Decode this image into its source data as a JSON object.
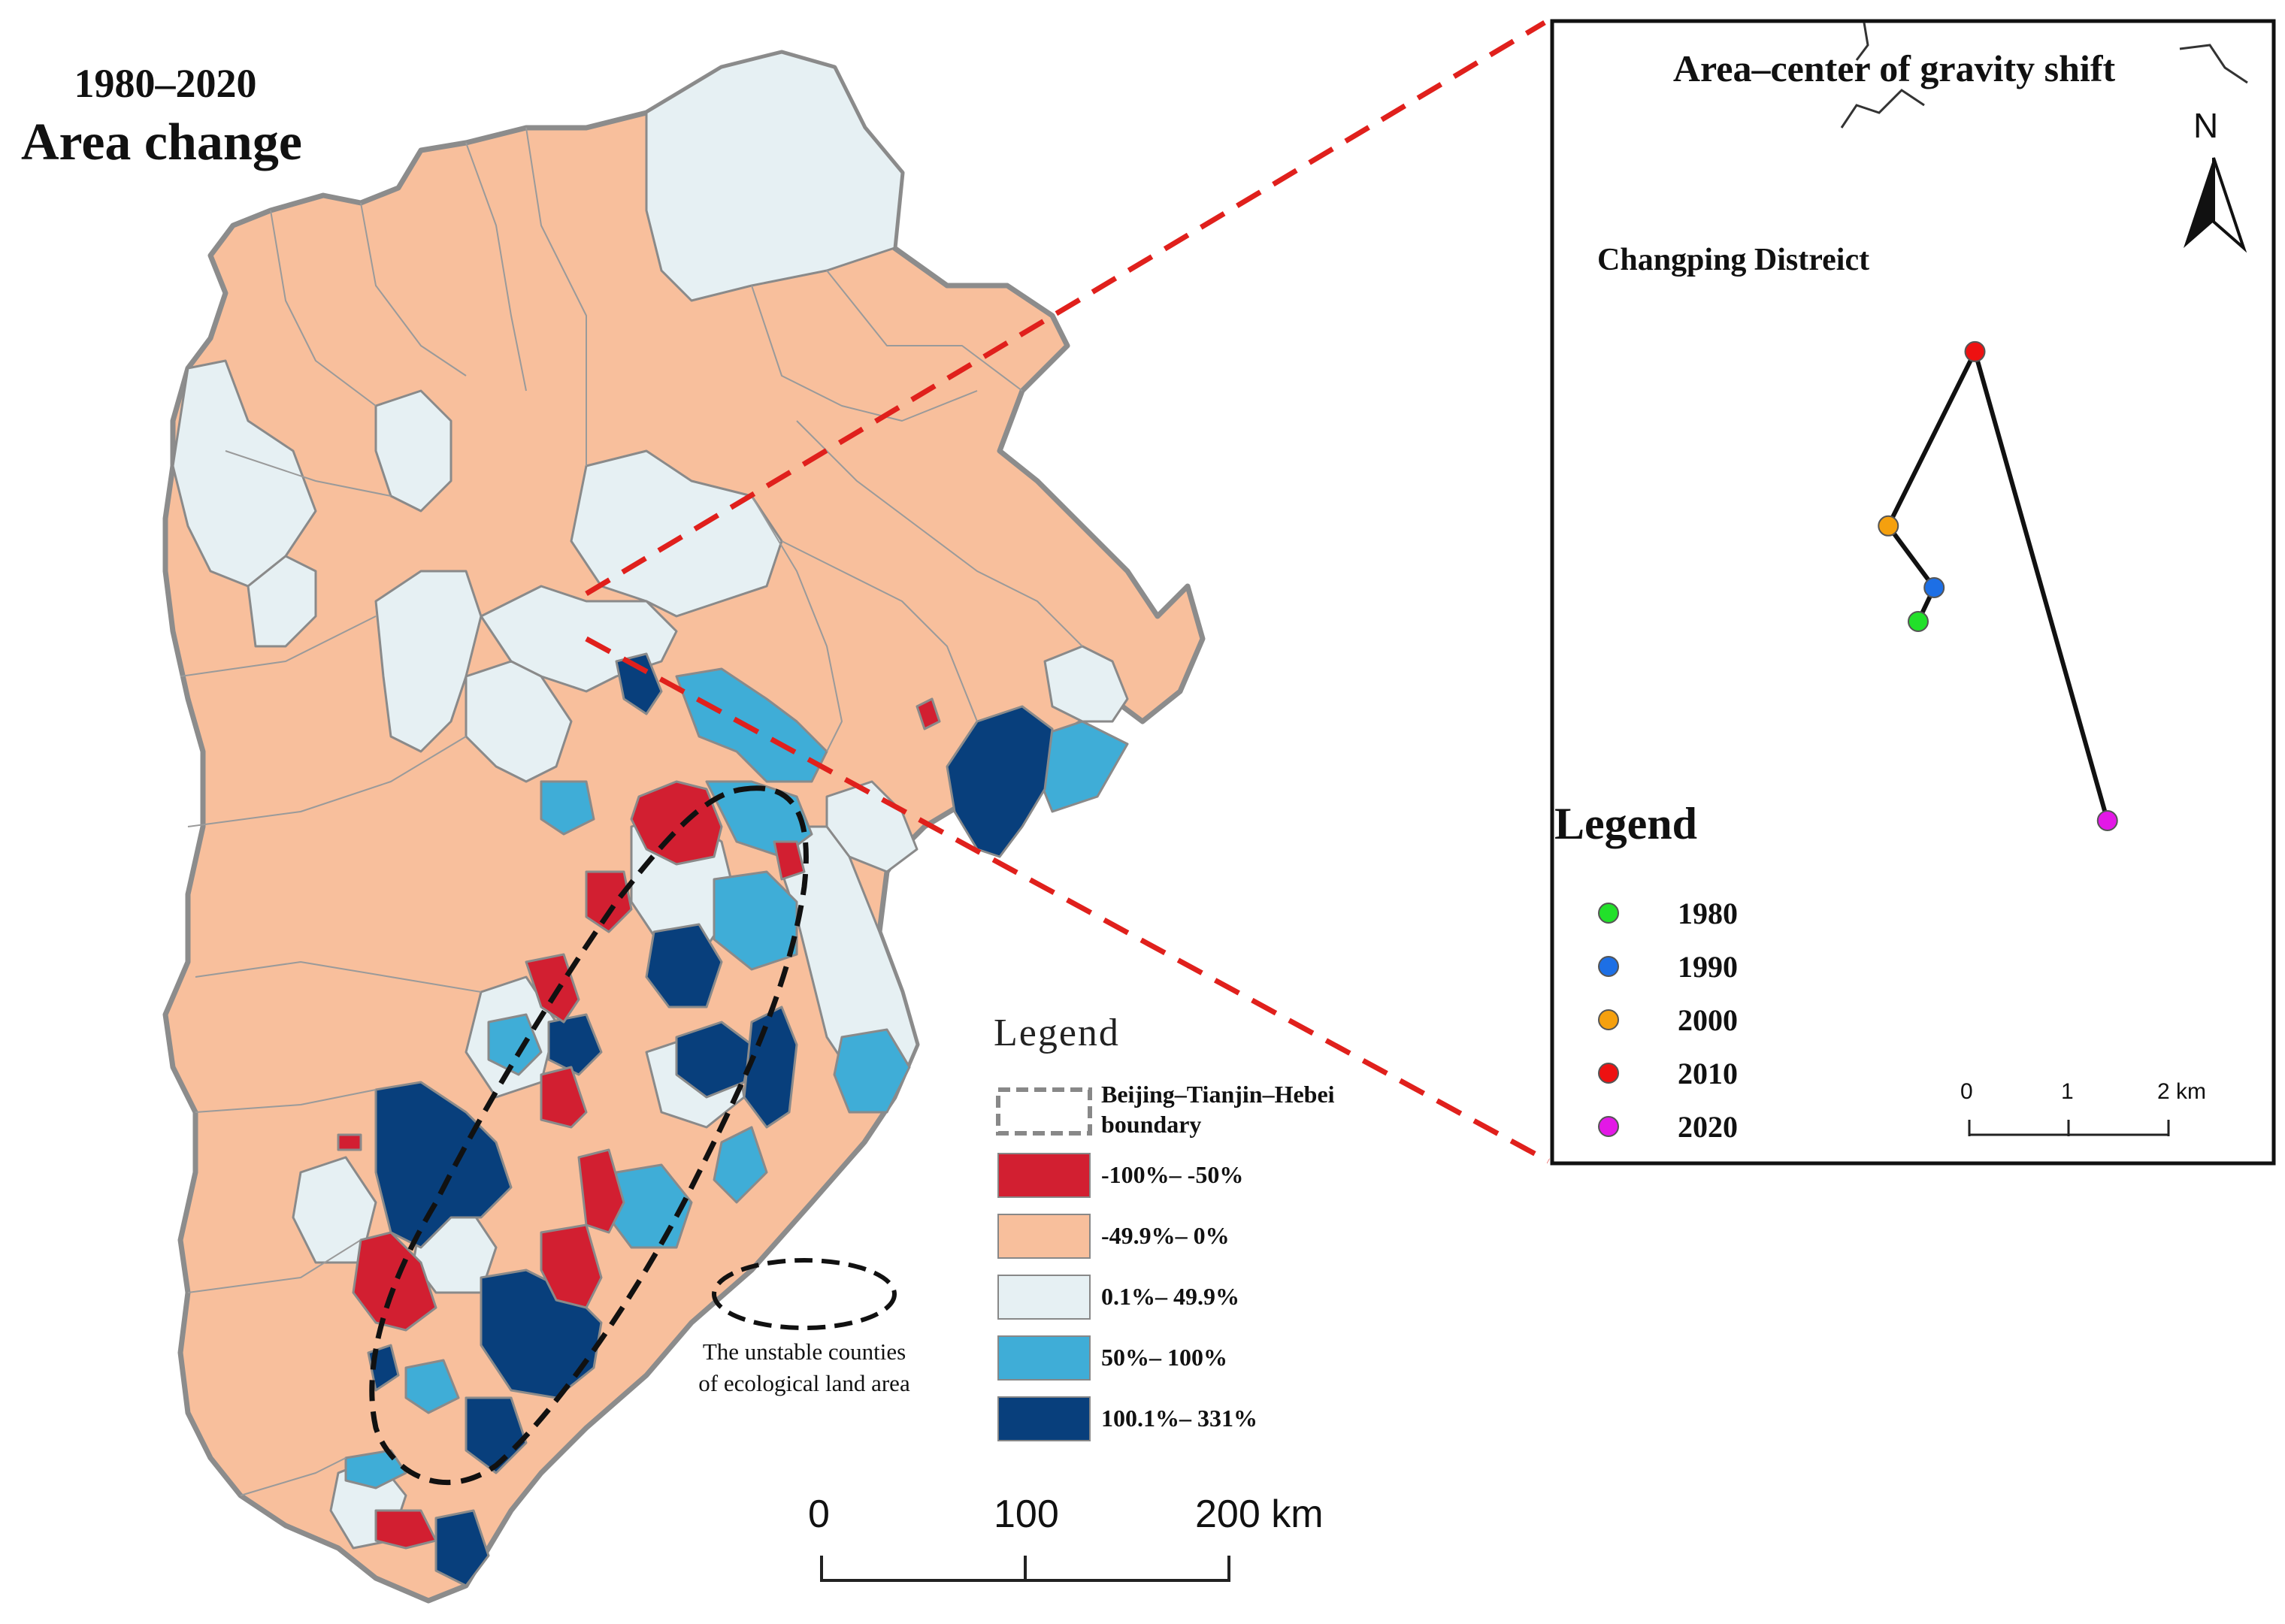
{
  "title": {
    "period": "1980–2020",
    "metric": "Area change"
  },
  "legend": {
    "title": "Legend",
    "boundary_label_line1": "Beijing–Tianjin–Hebei",
    "boundary_label_line2": "boundary",
    "classes": [
      {
        "label": "-100%– -50%",
        "color": "#d21f31"
      },
      {
        "label": "-49.9%– 0%",
        "color": "#f8bf9c"
      },
      {
        "label": "0.1%– 49.9%",
        "color": "#e6f0f3"
      },
      {
        "label": "50%– 100%",
        "color": "#3fadd7"
      },
      {
        "label": "100.1%– 331%",
        "color": "#083f7c"
      }
    ]
  },
  "unstable_note": {
    "line1": "The unstable counties",
    "line2": "of ecological land area"
  },
  "scale_bar": {
    "ticks": [
      "0",
      "100",
      "200 km"
    ]
  },
  "inset": {
    "title": "Area–center of gravity shift",
    "district": "Changping Distreict",
    "north_label": "N",
    "legend_title": "Legend",
    "points": [
      {
        "year": "1980",
        "color": "#22e02a",
        "x_km": 0.0,
        "y_km": 0.0
      },
      {
        "year": "1990",
        "color": "#1d6fe5",
        "x_km": 0.16,
        "y_km": 0.34
      },
      {
        "year": "2000",
        "color": "#f5a00e",
        "x_km": -0.3,
        "y_km": 0.96
      },
      {
        "year": "2010",
        "color": "#ee1111",
        "x_km": 0.57,
        "y_km": 2.71
      },
      {
        "year": "2020",
        "color": "#e318e6",
        "x_km": 1.9,
        "y_km": -2.0
      }
    ],
    "scale_ticks": [
      "0",
      "1",
      "2 km"
    ]
  }
}
